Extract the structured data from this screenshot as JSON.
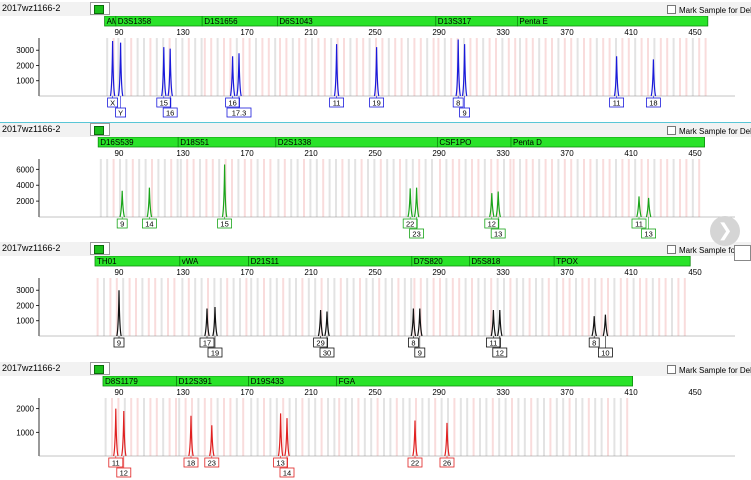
{
  "sample_name": "2017wz1166-2",
  "mark_label": "Mark Sample for Deletion",
  "chart_data": [
    {
      "type": "line",
      "title": "",
      "x_ticks": [
        90,
        130,
        170,
        210,
        250,
        290,
        330,
        370,
        410,
        450
      ],
      "y_ticks": [
        1000,
        2000,
        3000
      ],
      "ylim": [
        0,
        3800
      ],
      "color": "#1a1adb",
      "markers": [
        {
          "name": "AMEL",
          "start": 81,
          "end": 88
        },
        {
          "name": "D3S1358",
          "start": 88,
          "end": 142
        },
        {
          "name": "D1S1656",
          "start": 142,
          "end": 189
        },
        {
          "name": "D6S1043",
          "start": 189,
          "end": 288
        },
        {
          "name": "D13S317",
          "start": 288,
          "end": 339
        },
        {
          "name": "Penta E",
          "start": 339,
          "end": 458
        }
      ],
      "peaks": [
        {
          "x": 86,
          "y": 3600,
          "label": "X"
        },
        {
          "x": 91,
          "y": 3500,
          "label": "Y"
        },
        {
          "x": 118,
          "y": 3200,
          "label": "15"
        },
        {
          "x": 122,
          "y": 3100,
          "label": "16"
        },
        {
          "x": 161,
          "y": 2600,
          "label": "16"
        },
        {
          "x": 165,
          "y": 2800,
          "label": "17.3"
        },
        {
          "x": 226,
          "y": 3400,
          "label": "11"
        },
        {
          "x": 251,
          "y": 3200,
          "label": "19"
        },
        {
          "x": 302,
          "y": 3700,
          "label": "8"
        },
        {
          "x": 306,
          "y": 3400,
          "label": "9"
        },
        {
          "x": 401,
          "y": 2600,
          "label": "11"
        },
        {
          "x": 424,
          "y": 2400,
          "label": "18"
        }
      ]
    },
    {
      "type": "line",
      "title": "",
      "x_ticks": [
        90,
        130,
        170,
        210,
        250,
        290,
        330,
        370,
        410,
        450
      ],
      "y_ticks": [
        2000,
        4000,
        6000
      ],
      "ylim": [
        0,
        7300
      ],
      "color": "#1aa51a",
      "markers": [
        {
          "name": "D16S539",
          "start": 77,
          "end": 127
        },
        {
          "name": "D18S51",
          "start": 127,
          "end": 188
        },
        {
          "name": "D2S1338",
          "start": 188,
          "end": 289
        },
        {
          "name": "CSF1PO",
          "start": 289,
          "end": 335
        },
        {
          "name": "Penta D",
          "start": 335,
          "end": 456
        }
      ],
      "peaks": [
        {
          "x": 92,
          "y": 3300,
          "label": "9"
        },
        {
          "x": 109,
          "y": 3700,
          "label": "14"
        },
        {
          "x": 156,
          "y": 6600,
          "label": "15"
        },
        {
          "x": 272,
          "y": 3600,
          "label": "22"
        },
        {
          "x": 276,
          "y": 3700,
          "label": "23"
        },
        {
          "x": 323,
          "y": 3000,
          "label": "12"
        },
        {
          "x": 327,
          "y": 3200,
          "label": "13"
        },
        {
          "x": 415,
          "y": 2600,
          "label": "11"
        },
        {
          "x": 421,
          "y": 2400,
          "label": "13"
        }
      ]
    },
    {
      "type": "line",
      "title": "",
      "x_ticks": [
        90,
        130,
        170,
        210,
        250,
        290,
        330,
        370,
        410,
        450
      ],
      "y_ticks": [
        1000,
        2000,
        3000
      ],
      "ylim": [
        0,
        3800
      ],
      "color": "#111111",
      "markers": [
        {
          "name": "TH01",
          "start": 75,
          "end": 128
        },
        {
          "name": "vWA",
          "start": 128,
          "end": 171
        },
        {
          "name": "D21S11",
          "start": 171,
          "end": 273
        },
        {
          "name": "D7S820",
          "start": 273,
          "end": 309
        },
        {
          "name": "D5S818",
          "start": 309,
          "end": 362
        },
        {
          "name": "TPOX",
          "start": 362,
          "end": 447
        }
      ],
      "peaks": [
        {
          "x": 90,
          "y": 3000,
          "label": "9"
        },
        {
          "x": 145,
          "y": 1800,
          "label": "17"
        },
        {
          "x": 150,
          "y": 1900,
          "label": "19"
        },
        {
          "x": 216,
          "y": 1700,
          "label": "29"
        },
        {
          "x": 220,
          "y": 1600,
          "label": "30"
        },
        {
          "x": 274,
          "y": 1800,
          "label": "8"
        },
        {
          "x": 278,
          "y": 1800,
          "label": "9"
        },
        {
          "x": 324,
          "y": 1700,
          "label": "11"
        },
        {
          "x": 328,
          "y": 1700,
          "label": "12"
        },
        {
          "x": 387,
          "y": 1300,
          "label": "8"
        },
        {
          "x": 394,
          "y": 1400,
          "label": "10"
        }
      ]
    },
    {
      "type": "line",
      "title": "",
      "x_ticks": [
        90,
        130,
        170,
        210,
        250,
        290,
        330,
        370,
        410,
        450
      ],
      "y_ticks": [
        1000,
        2000
      ],
      "ylim": [
        0,
        2450
      ],
      "color": "#e02020",
      "markers": [
        {
          "name": "D8S1179",
          "start": 80,
          "end": 126
        },
        {
          "name": "D12S391",
          "start": 126,
          "end": 171
        },
        {
          "name": "D19S433",
          "start": 171,
          "end": 226
        },
        {
          "name": "FGA",
          "start": 226,
          "end": 411
        }
      ],
      "peaks": [
        {
          "x": 88,
          "y": 2000,
          "label": "11"
        },
        {
          "x": 93,
          "y": 1900,
          "label": "12"
        },
        {
          "x": 135,
          "y": 1700,
          "label": "18"
        },
        {
          "x": 148,
          "y": 1300,
          "label": "23"
        },
        {
          "x": 191,
          "y": 1800,
          "label": "13"
        },
        {
          "x": 195,
          "y": 1600,
          "label": "14"
        },
        {
          "x": 275,
          "y": 1500,
          "label": "22"
        },
        {
          "x": 295,
          "y": 1400,
          "label": "26"
        }
      ]
    }
  ]
}
